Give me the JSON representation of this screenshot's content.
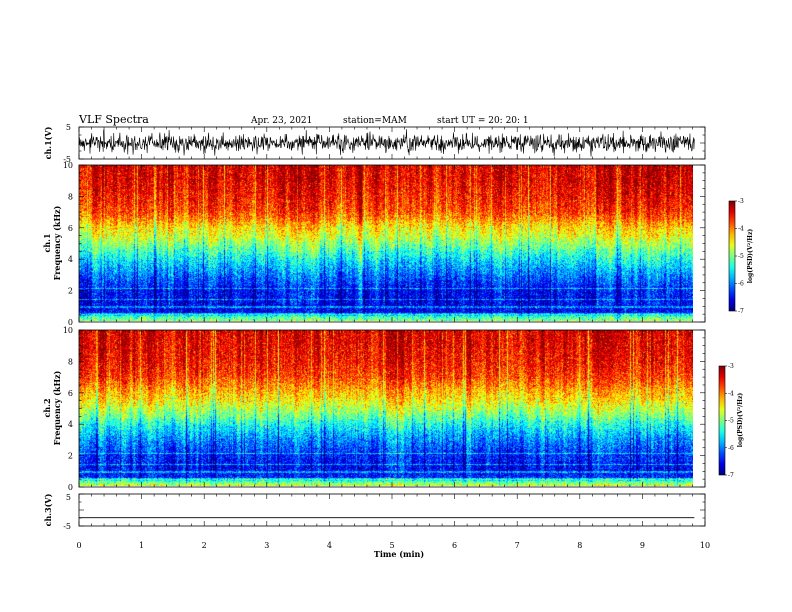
{
  "header": {
    "title": "VLF Spectra",
    "date": "Apr. 23, 2021",
    "station": "station=MAM",
    "start": "start  UT =   20: 20: 1"
  },
  "chart_data": [
    {
      "panel": "ch1-waveform",
      "type": "line",
      "ylabel": "ch.1(V)",
      "ylim": [
        -5,
        5
      ],
      "yticks": [
        "5",
        "-5"
      ],
      "xlim": [
        0,
        10
      ],
      "data_xrange": [
        0,
        9.83
      ],
      "signal": "broadband noise, approx. -3.5 to 3.5 V"
    },
    {
      "panel": "ch1-spectrogram",
      "type": "heatmap",
      "xlabel": "",
      "ylabel": "Frequency (kHz)",
      "channel_label": "ch.1",
      "xlim": [
        0,
        10
      ],
      "data_xrange": [
        0,
        9.83
      ],
      "ylim": [
        0,
        10
      ],
      "yticks": [
        "0",
        "2",
        "4",
        "6",
        "8",
        "10"
      ],
      "zlim": [
        -7,
        -3
      ],
      "colorbar_label": "log(PSD)(V²/Hz)",
      "colorbar_ticks": [
        "-3",
        "-4",
        "-5",
        "-6",
        "-7"
      ],
      "frequency_profile": {
        "freq_kHz": [
          0,
          0.3,
          0.5,
          1,
          2,
          3,
          4,
          4.5,
          5,
          5.5,
          6,
          6.5,
          7,
          8,
          9,
          10
        ],
        "log_psd": [
          -4.9,
          -5.3,
          -6.5,
          -6.55,
          -6.45,
          -6.0,
          -5.5,
          -5.2,
          -4.9,
          -4.6,
          -4.4,
          -4.05,
          -3.75,
          -3.55,
          -3.4,
          -3.35
        ]
      }
    },
    {
      "panel": "ch2-spectrogram",
      "type": "heatmap",
      "xlabel": "",
      "ylabel": "Frequency (kHz)",
      "channel_label": "ch.2",
      "xlim": [
        0,
        10
      ],
      "data_xrange": [
        0,
        9.83
      ],
      "ylim": [
        0,
        10
      ],
      "yticks": [
        "0",
        "2",
        "4",
        "6",
        "8",
        "10"
      ],
      "zlim": [
        -7,
        -3
      ],
      "colorbar_label": "log(PSD)(V²/Hz)",
      "colorbar_ticks": [
        "-3",
        "-4",
        "-5",
        "-6",
        "-7"
      ],
      "frequency_profile": {
        "freq_kHz": [
          0,
          0.3,
          0.5,
          1,
          2,
          3,
          4,
          4.5,
          5,
          5.5,
          6,
          6.5,
          7,
          8,
          9,
          10
        ],
        "log_psd": [
          -4.6,
          -5.2,
          -6.3,
          -6.5,
          -6.3,
          -5.9,
          -5.35,
          -5.0,
          -4.7,
          -4.4,
          -4.2,
          -3.95,
          -3.7,
          -3.5,
          -3.4,
          -3.35
        ]
      }
    },
    {
      "panel": "ch3-waveform",
      "type": "line",
      "ylabel": "ch.3(V)",
      "xlabel": "Time (min)",
      "ylim": [
        -5,
        5
      ],
      "yticks": [
        "5",
        "-5"
      ],
      "xlim": [
        0,
        10
      ],
      "xticks": [
        "0",
        "1",
        "2",
        "3",
        "4",
        "5",
        "6",
        "7",
        "8",
        "9",
        "10"
      ],
      "data_xrange": [
        0,
        9.83
      ],
      "signal": "flat line at approx. -2.4 V"
    }
  ]
}
